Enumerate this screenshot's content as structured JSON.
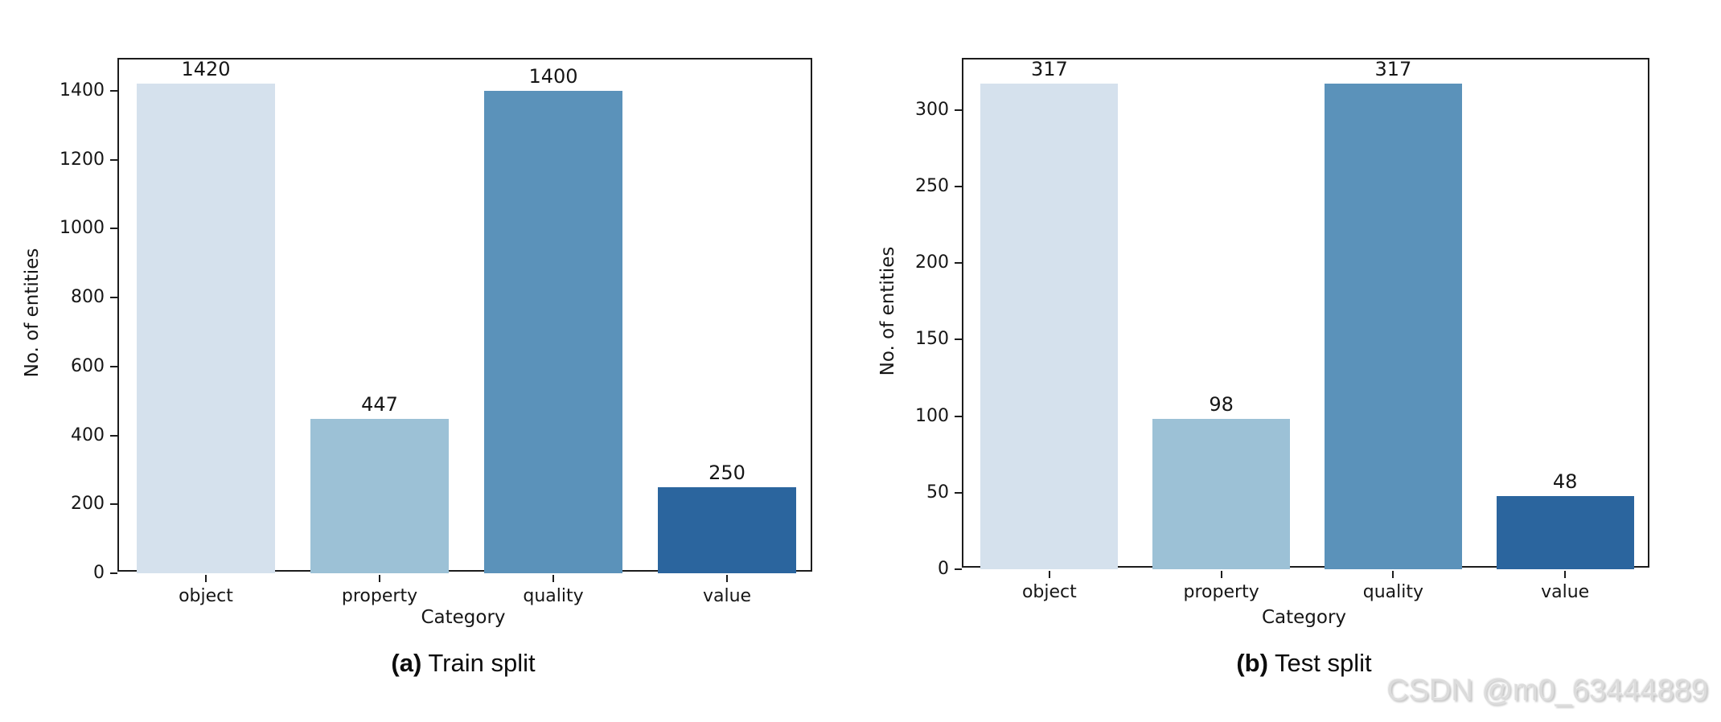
{
  "page": {
    "background": "#ffffff",
    "text_color": "#161616",
    "spine_color": "#1c1c1c"
  },
  "chart_data": [
    {
      "type": "bar",
      "caption": {
        "marker": "(a)",
        "text": "Train split"
      },
      "xlabel": "Category",
      "ylabel": "No. of entities",
      "categories": [
        "object",
        "property",
        "quality",
        "value"
      ],
      "values": [
        1420,
        447,
        1400,
        250
      ],
      "bar_labels": [
        "1420",
        "447",
        "1400",
        "250"
      ],
      "bar_colors": [
        "#d5e1ed",
        "#9cc1d6",
        "#5b92ba",
        "#2b659e"
      ],
      "yticks": [
        0,
        200,
        400,
        600,
        800,
        1000,
        1200,
        1400
      ],
      "ylim": [
        0,
        1491
      ],
      "grid": false,
      "legend": "none"
    },
    {
      "type": "bar",
      "caption": {
        "marker": "(b)",
        "text": "Test split"
      },
      "xlabel": "Category",
      "ylabel": "No. of entities",
      "categories": [
        "object",
        "property",
        "quality",
        "value"
      ],
      "values": [
        317,
        98,
        317,
        48
      ],
      "bar_labels": [
        "317",
        "98",
        "317",
        "48"
      ],
      "bar_colors": [
        "#d5e1ed",
        "#9cc1d6",
        "#5b92ba",
        "#2b659e"
      ],
      "yticks": [
        0,
        50,
        100,
        150,
        200,
        250,
        300
      ],
      "ylim": [
        0,
        333
      ],
      "grid": false,
      "legend": "none"
    }
  ],
  "watermark": {
    "text": "CSDN @m0_63444889",
    "color": "#dcdcdc"
  }
}
